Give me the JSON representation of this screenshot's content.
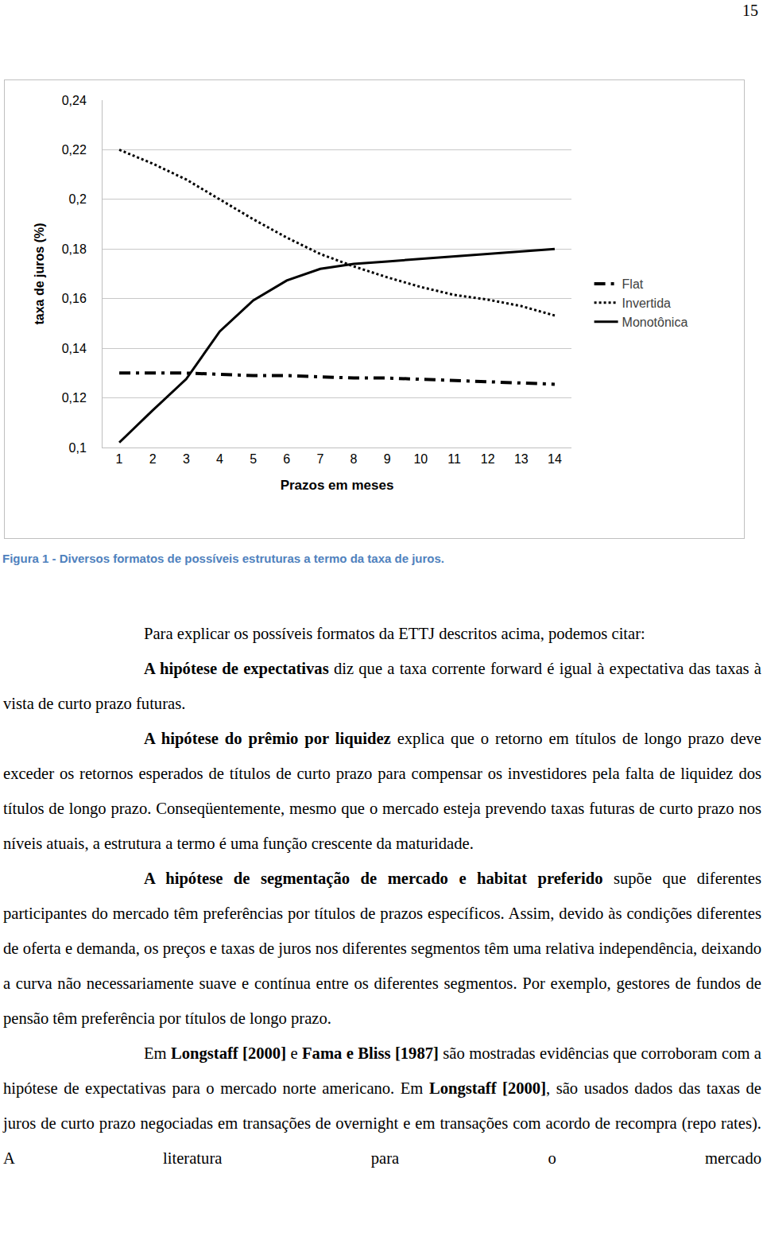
{
  "page_number": "15",
  "chart_data": {
    "type": "line",
    "x_label": "Prazos em meses",
    "y_label": "taxa de juros (%)",
    "x": [
      1,
      2,
      3,
      4,
      5,
      6,
      7,
      8,
      9,
      10,
      11,
      12,
      13,
      14
    ],
    "xlim": [
      0.5,
      14.5
    ],
    "xticks": [
      1,
      2,
      3,
      4,
      5,
      6,
      7,
      8,
      9,
      10,
      11,
      12,
      13,
      14
    ],
    "ylim": [
      0.1,
      0.24
    ],
    "yticks": [
      {
        "value": 0.1,
        "label": "0,1"
      },
      {
        "value": 0.12,
        "label": "0,12"
      },
      {
        "value": 0.14,
        "label": "0,14"
      },
      {
        "value": 0.16,
        "label": "0,16"
      },
      {
        "value": 0.18,
        "label": "0,18"
      },
      {
        "value": 0.2,
        "label": "0,2"
      },
      {
        "value": 0.22,
        "label": "0,22"
      },
      {
        "value": 0.24,
        "label": "0,24"
      }
    ],
    "grid": true,
    "legend": "right",
    "series": [
      {
        "name": "Flat",
        "color": "#000000",
        "line_style": "dashdot",
        "values": [
          0.13,
          0.13,
          0.13,
          0.1295,
          0.129,
          0.129,
          0.1285,
          0.128,
          0.128,
          0.1275,
          0.127,
          0.1265,
          0.126,
          0.1255
        ]
      },
      {
        "name": "Invertida",
        "color": "#000000",
        "line_style": "dotted",
        "values": [
          0.22,
          0.2144,
          0.208,
          0.2,
          0.192,
          0.1846,
          0.178,
          0.173,
          0.1686,
          0.1647,
          0.1615,
          0.1596,
          0.157,
          0.1532
        ]
      },
      {
        "name": "Monotônica",
        "color": "#000000",
        "line_style": "solid",
        "values": [
          0.102,
          0.115,
          0.1276,
          0.1468,
          0.1593,
          0.1673,
          0.172,
          0.174,
          0.175,
          0.176,
          0.177,
          0.178,
          0.179,
          0.18
        ]
      }
    ]
  },
  "caption": "Figura 1 - Diversos formatos de possíveis estruturas a termo da taxa de juros.",
  "paragraphs": [
    [
      {
        "t": "Para explicar os possíveis formatos da ETTJ descritos acima, podemos citar:",
        "b": false
      }
    ],
    [
      {
        "t": "A hipótese de expectativas",
        "b": true
      },
      {
        "t": " diz que a taxa corrente forward é igual à expectativa das taxas à vista de curto prazo futuras.",
        "b": false
      }
    ],
    [
      {
        "t": "A hipótese do prêmio por liquidez",
        "b": true
      },
      {
        "t": " explica que o retorno em títulos de longo prazo deve exceder os retornos esperados de títulos de curto prazo para compensar os investidores pela falta de liquidez dos títulos de longo prazo. Conseqüentemente, mesmo que o mercado esteja prevendo taxas futuras de curto prazo nos níveis atuais, a estrutura a termo é uma função crescente da maturidade.",
        "b": false
      }
    ],
    [
      {
        "t": "A hipótese de segmentação de mercado e habitat preferido",
        "b": true
      },
      {
        "t": " supõe que diferentes participantes do mercado têm preferências por títulos de prazos específicos. Assim, devido às condições diferentes de oferta e demanda, os preços e taxas de juros nos diferentes segmentos têm uma relativa independência, deixando a curva não necessariamente suave e contínua entre os diferentes segmentos.  Por exemplo, gestores de fundos de pensão têm preferência por títulos de longo prazo.",
        "b": false
      }
    ],
    [
      {
        "t": "Em ",
        "b": false
      },
      {
        "t": "Longstaff [2000]",
        "b": true
      },
      {
        "t": " e ",
        "b": false
      },
      {
        "t": "Fama e Bliss [1987]",
        "b": true
      },
      {
        "t": " são mostradas evidências que corroboram com a hipótese de expectativas para o mercado norte americano. Em ",
        "b": false
      },
      {
        "t": "Longstaff [2000]",
        "b": true
      },
      {
        "t": ", são usados dados das taxas de juros de curto prazo negociadas em transações de overnight e em transações com acordo de recompra (repo rates). A literatura para o mercado",
        "b": false
      }
    ]
  ]
}
